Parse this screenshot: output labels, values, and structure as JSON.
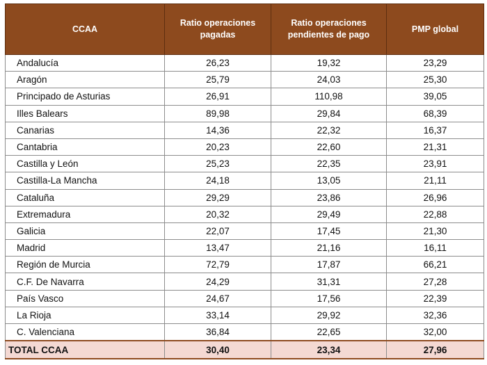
{
  "headers": [
    "CCAA",
    "Ratio operaciones pagadas",
    "Ratio operaciones pendientes de pago",
    "PMP global"
  ],
  "rows": [
    [
      "Andalucía",
      "26,23",
      "19,32",
      "23,29"
    ],
    [
      "Aragón",
      "25,79",
      "24,03",
      "25,30"
    ],
    [
      "Principado de Asturias",
      "26,91",
      "110,98",
      "39,05"
    ],
    [
      "Illes Balears",
      "89,98",
      "29,84",
      "68,39"
    ],
    [
      "Canarias",
      "14,36",
      "22,32",
      "16,37"
    ],
    [
      "Cantabria",
      "20,23",
      "22,60",
      "21,31"
    ],
    [
      "Castilla y León",
      "25,23",
      "22,35",
      "23,91"
    ],
    [
      "Castilla-La Mancha",
      "24,18",
      "13,05",
      "21,11"
    ],
    [
      "Cataluña",
      "29,29",
      "23,86",
      "26,96"
    ],
    [
      "Extremadura",
      "20,32",
      "29,49",
      "22,88"
    ],
    [
      "Galicia",
      "22,07",
      "17,45",
      "21,30"
    ],
    [
      "Madrid",
      "13,47",
      "21,16",
      "16,11"
    ],
    [
      "Región de Murcia",
      "72,79",
      "17,87",
      "66,21"
    ],
    [
      "C.F. De Navarra",
      "24,29",
      "31,31",
      "27,28"
    ],
    [
      "País Vasco",
      "24,67",
      "17,56",
      "22,39"
    ],
    [
      "La Rioja",
      "33,14",
      "29,92",
      "32,36"
    ],
    [
      "C. Valenciana",
      "36,84",
      "22,65",
      "32,00"
    ]
  ],
  "total": [
    "TOTAL CCAA",
    "30,40",
    "23,34",
    "27,96"
  ],
  "colors": {
    "header_bg": "#8d4a1e",
    "header_text": "#ffffff",
    "total_bg": "#f4d9d3"
  }
}
